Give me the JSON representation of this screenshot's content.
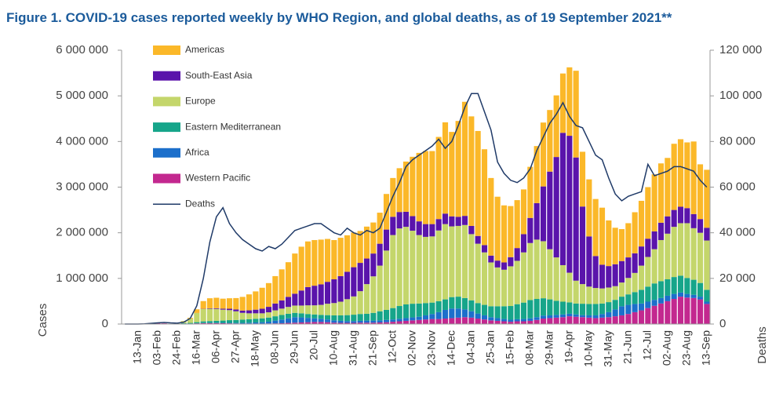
{
  "chart_data": {
    "type": "bar",
    "title": "Figure 1. COVID-19 cases reported weekly by WHO Region, and global deaths, as of 19 September 2021**",
    "y_label": "Cases",
    "y2_label": "Deaths",
    "stacked": true,
    "legend": "top-left",
    "categories": [
      null,
      null,
      "13-Jan",
      null,
      null,
      "03-Feb",
      null,
      null,
      "24-Feb",
      null,
      null,
      "16-Mar",
      null,
      null,
      "06-Apr",
      null,
      null,
      "27-Apr",
      null,
      null,
      "18-May",
      null,
      null,
      "08-Jun",
      null,
      null,
      "29-Jun",
      null,
      null,
      "20-Jul",
      null,
      null,
      "10-Aug",
      null,
      null,
      "31-Aug",
      null,
      null,
      "21-Sep",
      null,
      null,
      "12-Oct",
      null,
      null,
      "02-Nov",
      null,
      null,
      "23-Nov",
      null,
      null,
      "14-Dec",
      null,
      null,
      "04-Jan",
      null,
      null,
      "25-Jan",
      null,
      null,
      "15-Feb",
      null,
      null,
      "08-Mar",
      null,
      null,
      "29-Mar",
      null,
      null,
      "19-Apr",
      null,
      null,
      "10-May",
      null,
      null,
      "31-May",
      null,
      null,
      "21-Jun",
      null,
      null,
      "12-Jul",
      null,
      null,
      "02-Aug",
      null,
      null,
      "23-Aug",
      null,
      null,
      "13-Sep"
    ],
    "ylim": [
      0,
      6000000
    ],
    "yticks": [
      0,
      {
        "value": 1000000,
        "label": "1 000 000"
      },
      {
        "value": 2000000,
        "label": "2 000 000"
      },
      {
        "value": 3000000,
        "label": "3 000 000"
      },
      {
        "value": 4000000,
        "label": "4 000 000"
      },
      {
        "value": 5000000,
        "label": "5 000 000"
      },
      {
        "value": 6000000,
        "label": "6 000 000"
      }
    ],
    "y2lim": [
      0,
      120000
    ],
    "y2ticks": [
      0,
      {
        "value": 20000,
        "label": "20 000"
      },
      {
        "value": 40000,
        "label": "40 000"
      },
      {
        "value": 60000,
        "label": "60 000"
      },
      {
        "value": 80000,
        "label": "80 000"
      },
      {
        "value": 100000,
        "label": "100 000"
      },
      {
        "value": 120000,
        "label": "120 000"
      }
    ],
    "series": [
      {
        "name": "Americas",
        "color": "#fbb829",
        "values": [
          0,
          0,
          0,
          0,
          0,
          0,
          0,
          0,
          1000,
          5000,
          20000,
          80000,
          170000,
          220000,
          230000,
          220000,
          230000,
          250000,
          300000,
          350000,
          400000,
          460000,
          520000,
          600000,
          680000,
          760000,
          880000,
          960000,
          1000000,
          1000000,
          980000,
          940000,
          860000,
          840000,
          800000,
          760000,
          700000,
          700000,
          680000,
          680000,
          780000,
          850000,
          960000,
          1100000,
          1300000,
          1500000,
          1600000,
          1600000,
          1800000,
          2000000,
          1850000,
          2100000,
          2500000,
          2400000,
          2300000,
          2100000,
          1700000,
          1400000,
          1250000,
          1120000,
          1050000,
          980000,
          1120000,
          1250000,
          1400000,
          1350000,
          1350000,
          1300000,
          1500000,
          1900000,
          1200000,
          1250000,
          1250000,
          1250000,
          1000000,
          800000,
          700000,
          750000,
          900000,
          1000000,
          1130000,
          1250000,
          1300000,
          1280000,
          1450000,
          1480000,
          1440000,
          1590000,
          1200000,
          1270000
        ]
      },
      {
        "name": "South-East Asia",
        "color": "#5a14ab",
        "values": [
          0,
          0,
          0,
          0,
          0,
          0,
          0,
          0,
          0,
          0,
          1000,
          2000,
          5000,
          10000,
          15000,
          20000,
          30000,
          40000,
          50000,
          65000,
          80000,
          100000,
          120000,
          150000,
          180000,
          220000,
          260000,
          330000,
          400000,
          430000,
          450000,
          480000,
          520000,
          560000,
          600000,
          640000,
          620000,
          560000,
          500000,
          480000,
          460000,
          400000,
          360000,
          330000,
          320000,
          300000,
          280000,
          270000,
          250000,
          230000,
          220000,
          200000,
          200000,
          180000,
          170000,
          160000,
          150000,
          150000,
          160000,
          200000,
          280000,
          400000,
          550000,
          800000,
          1200000,
          1700000,
          2200000,
          2900000,
          3000000,
          2700000,
          1700000,
          1100000,
          700000,
          520000,
          470000,
          480000,
          470000,
          450000,
          430000,
          420000,
          400000,
          390000,
          380000,
          380000,
          370000,
          360000,
          330000,
          310000,
          300000,
          280000
        ]
      },
      {
        "name": "Europe",
        "color": "#c4d66b",
        "values": [
          0,
          0,
          0,
          0,
          0,
          0,
          0,
          1000,
          10000,
          40000,
          90000,
          200000,
          270000,
          270000,
          260000,
          240000,
          220000,
          190000,
          150000,
          130000,
          120000,
          110000,
          115000,
          130000,
          140000,
          150000,
          160000,
          170000,
          190000,
          200000,
          220000,
          250000,
          270000,
          300000,
          350000,
          400000,
          500000,
          650000,
          800000,
          1000000,
          1300000,
          1600000,
          1700000,
          1700000,
          1600000,
          1500000,
          1450000,
          1450000,
          1550000,
          1650000,
          1550000,
          1550000,
          1600000,
          1450000,
          1300000,
          1150000,
          960000,
          850000,
          800000,
          870000,
          950000,
          1100000,
          1250000,
          1300000,
          1250000,
          1100000,
          950000,
          800000,
          650000,
          500000,
          430000,
          380000,
          350000,
          330000,
          320000,
          300000,
          310000,
          360000,
          420000,
          530000,
          650000,
          750000,
          900000,
          1000000,
          1100000,
          1150000,
          1200000,
          1130000,
          1100000,
          1080000
        ]
      },
      {
        "name": "Eastern Mediterranean",
        "color": "#16a58a",
        "values": [
          0,
          0,
          0,
          0,
          0,
          0,
          0,
          0,
          5000,
          10000,
          15000,
          25000,
          35000,
          40000,
          45000,
          50000,
          60000,
          65000,
          70000,
          75000,
          80000,
          85000,
          90000,
          95000,
          100000,
          100000,
          95000,
          90000,
          85000,
          85000,
          85000,
          95000,
          110000,
          120000,
          130000,
          140000,
          150000,
          150000,
          170000,
          200000,
          220000,
          250000,
          280000,
          300000,
          300000,
          290000,
          270000,
          250000,
          240000,
          230000,
          250000,
          260000,
          250000,
          240000,
          230000,
          230000,
          240000,
          260000,
          280000,
          300000,
          330000,
          360000,
          400000,
          400000,
          380000,
          350000,
          310000,
          280000,
          250000,
          240000,
          250000,
          250000,
          250000,
          230000,
          220000,
          210000,
          210000,
          230000,
          260000,
          300000,
          330000,
          360000,
          370000,
          360000,
          370000,
          370000,
          350000,
          330000,
          300000,
          260000
        ]
      },
      {
        "name": "Africa",
        "color": "#1c6fcb",
        "values": [
          0,
          0,
          0,
          0,
          0,
          0,
          0,
          0,
          0,
          0,
          0,
          1000,
          3000,
          5000,
          6000,
          8000,
          10000,
          12000,
          15000,
          20000,
          25000,
          30000,
          40000,
          60000,
          80000,
          100000,
          120000,
          110000,
          95000,
          80000,
          70000,
          60000,
          50000,
          45000,
          40000,
          40000,
          40000,
          45000,
          45000,
          45000,
          50000,
          50000,
          55000,
          60000,
          65000,
          70000,
          90000,
          110000,
          150000,
          190000,
          210000,
          200000,
          170000,
          140000,
          110000,
          90000,
          70000,
          60000,
          50000,
          45000,
          45000,
          50000,
          55000,
          60000,
          65000,
          60000,
          60000,
          60000,
          55000,
          50000,
          45000,
          50000,
          60000,
          80000,
          110000,
          150000,
          200000,
          200000,
          180000,
          150000,
          140000,
          130000,
          120000,
          120000,
          110000,
          90000,
          80000,
          70000,
          60000,
          50000
        ]
      },
      {
        "name": "Western Pacific",
        "color": "#c3288f",
        "values": [
          0,
          0,
          1000,
          10000,
          20000,
          18000,
          15000,
          5000,
          5000,
          10000,
          10000,
          15000,
          20000,
          20000,
          20000,
          18000,
          15000,
          12000,
          10000,
          10000,
          10000,
          10000,
          12000,
          15000,
          18000,
          25000,
          30000,
          35000,
          40000,
          45000,
          45000,
          40000,
          30000,
          25000,
          25000,
          25000,
          30000,
          30000,
          30000,
          35000,
          40000,
          50000,
          60000,
          70000,
          80000,
          90000,
          100000,
          110000,
          110000,
          120000,
          130000,
          140000,
          150000,
          140000,
          120000,
          100000,
          80000,
          70000,
          60000,
          50000,
          60000,
          60000,
          70000,
          90000,
          120000,
          130000,
          140000,
          150000,
          170000,
          160000,
          150000,
          140000,
          130000,
          140000,
          150000,
          170000,
          190000,
          220000,
          260000,
          300000,
          350000,
          400000,
          450000,
          500000,
          550000,
          600000,
          580000,
          570000,
          540000,
          440000
        ]
      },
      {
        "name": "Deaths",
        "type": "line",
        "axis": "y2",
        "color": "#1f3a68",
        "values": [
          0,
          0,
          0,
          100,
          300,
          500,
          700,
          500,
          400,
          800,
          2500,
          8000,
          20000,
          36000,
          47000,
          51000,
          44000,
          40000,
          37000,
          35000,
          33000,
          32000,
          34000,
          33000,
          35000,
          38000,
          41000,
          42000,
          43000,
          44000,
          44000,
          42000,
          40000,
          39000,
          42000,
          40000,
          39000,
          41000,
          40000,
          42000,
          49000,
          56000,
          62000,
          69000,
          72000,
          74000,
          76000,
          78000,
          81000,
          77000,
          80000,
          87000,
          95000,
          101000,
          101000,
          93000,
          85000,
          71000,
          66000,
          63000,
          62000,
          64000,
          68000,
          76000,
          82000,
          88000,
          92000,
          97000,
          91000,
          87000,
          86000,
          80000,
          74000,
          72000,
          64000,
          57000,
          54000,
          56000,
          57000,
          58000,
          70000,
          65000,
          66000,
          67000,
          69000,
          69000,
          68000,
          67000,
          63000,
          60000
        ]
      }
    ]
  }
}
